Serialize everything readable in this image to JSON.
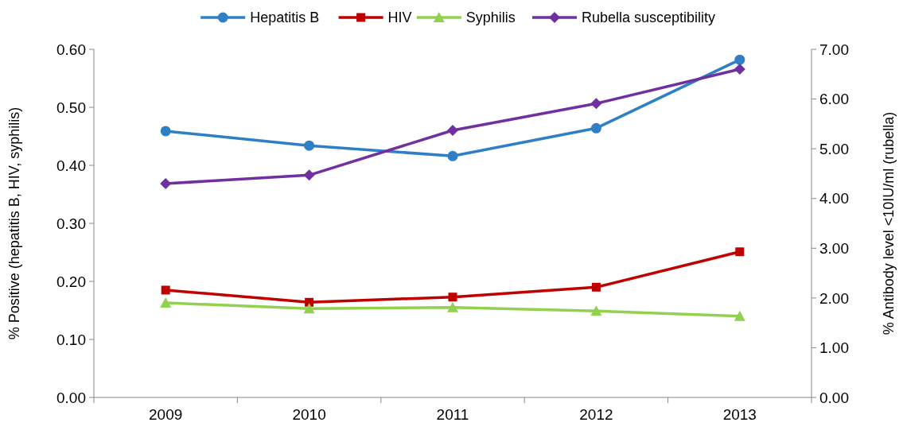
{
  "chart_data": {
    "type": "line",
    "ylabel": "% Positive (hepatitis B, HIV, syphilis)",
    "y2label": "% Antibody level <10IU/ml (rubella)",
    "categories": [
      "2009",
      "2010",
      "2011",
      "2012",
      "2013"
    ],
    "ylim": [
      0,
      0.6
    ],
    "yticks": [
      {
        "value": 0,
        "label": "0.00"
      },
      {
        "value": 0.1,
        "label": "0.10"
      },
      {
        "value": 0.2,
        "label": "0.20"
      },
      {
        "value": 0.3,
        "label": "0.30"
      },
      {
        "value": 0.4,
        "label": "0.40"
      },
      {
        "value": 0.5,
        "label": "0.50"
      },
      {
        "value": 0.6,
        "label": "0.60"
      }
    ],
    "y2lim": [
      0,
      7
    ],
    "y2ticks": [
      {
        "value": 0,
        "label": "0.00"
      },
      {
        "value": 1,
        "label": "1.00"
      },
      {
        "value": 2,
        "label": "2.00"
      },
      {
        "value": 3,
        "label": "3.00"
      },
      {
        "value": 4,
        "label": "4.00"
      },
      {
        "value": 5,
        "label": "5.00"
      },
      {
        "value": 6,
        "label": "6.00"
      },
      {
        "value": 7,
        "label": "7.00"
      }
    ],
    "legend": "top",
    "grid": false,
    "series": [
      {
        "name": "Hepatitis B",
        "color": "#2e7fc6",
        "marker": "circle",
        "values": [
          0.459,
          0.434,
          0.416,
          0.464,
          0.582
        ]
      },
      {
        "name": "HIV",
        "color": "#c00000",
        "marker": "square",
        "values": [
          0.185,
          0.164,
          0.173,
          0.19,
          0.251
        ]
      },
      {
        "name": "Syphilis",
        "color": "#92d050",
        "marker": "triangle",
        "values": [
          0.163,
          0.153,
          0.155,
          0.149,
          0.14
        ]
      },
      {
        "name": "Rubella susceptibility",
        "color": "#7030a0",
        "marker": "diamond",
        "axis": "y2",
        "values": [
          4.3,
          4.47,
          5.37,
          5.91,
          6.6
        ]
      }
    ]
  }
}
